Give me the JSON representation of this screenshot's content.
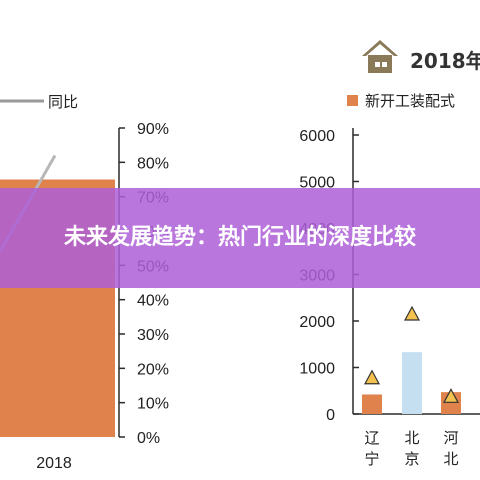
{
  "banner": {
    "title": "未来发展趋势：热门行业的深度比较"
  },
  "colors": {
    "bar_orange": "#e0824b",
    "bar_lightblue": "#c5dff0",
    "marker_yellow": "#f2c14e",
    "line_gray": "#b7b7b7",
    "axis": "#2b2b2b",
    "house_icon": "#8a7a58",
    "banner_bg": "#ae60d6"
  },
  "chart_data": [
    {
      "type": "bar",
      "categories": [
        "2018"
      ],
      "series": [
        {
          "name": "",
          "values": [
            75
          ]
        },
        {
          "name": "同比",
          "type": "line",
          "values": [
            82
          ]
        }
      ],
      "ylabel": "",
      "yticks": [
        "0%",
        "10%",
        "20%",
        "30%",
        "40%",
        "50%",
        "60%",
        "70%",
        "80%",
        "90%"
      ],
      "ylim": [
        0,
        90
      ],
      "legend": "top-left"
    },
    {
      "type": "bar",
      "title": "2018年",
      "title_icon": "house-icon",
      "categories": [
        "辽宁",
        "北京",
        "河北"
      ],
      "series": [
        {
          "name": "新开工装配式",
          "values": [
            420,
            1330,
            470
          ]
        },
        {
          "name": "",
          "type": "marker",
          "marker": "triangle",
          "values": [
            780,
            2150,
            380
          ]
        }
      ],
      "yticks": [
        "0",
        "1000",
        "2000",
        "3000",
        "4000",
        "5000",
        "6000"
      ],
      "ylim": [
        0,
        6000
      ],
      "legend": "top"
    }
  ]
}
